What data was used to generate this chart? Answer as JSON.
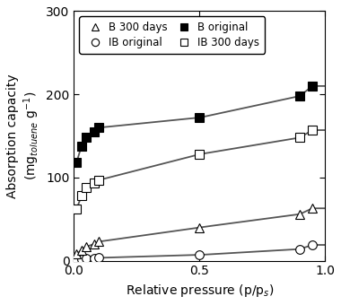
{
  "xlim": [
    0.0,
    1.0
  ],
  "ylim": [
    0,
    300
  ],
  "yticks": [
    0,
    100,
    200,
    300
  ],
  "xticks": [
    0.0,
    0.5,
    1.0
  ],
  "B_original_x": [
    0.01,
    0.03,
    0.05,
    0.08,
    0.1,
    0.5,
    0.9,
    0.95
  ],
  "B_original_y": [
    118,
    138,
    148,
    155,
    160,
    172,
    198,
    210
  ],
  "IB_300_x": [
    0.01,
    0.03,
    0.05,
    0.08,
    0.1,
    0.5,
    0.9,
    0.95
  ],
  "IB_300_y": [
    62,
    78,
    88,
    93,
    97,
    128,
    148,
    157
  ],
  "B_300_x": [
    0.01,
    0.03,
    0.05,
    0.08,
    0.1,
    0.5,
    0.9,
    0.95
  ],
  "B_300_y": [
    8,
    13,
    17,
    20,
    23,
    40,
    56,
    63
  ],
  "IB_original_x": [
    0.01,
    0.03,
    0.05,
    0.08,
    0.1,
    0.5,
    0.9,
    0.95
  ],
  "IB_original_y": [
    1,
    2,
    2.5,
    3,
    3.5,
    7,
    14,
    19
  ],
  "line_color": "#555555",
  "marker_size": 7,
  "line_width": 1.3,
  "figsize": [
    3.8,
    3.4
  ],
  "dpi": 100
}
